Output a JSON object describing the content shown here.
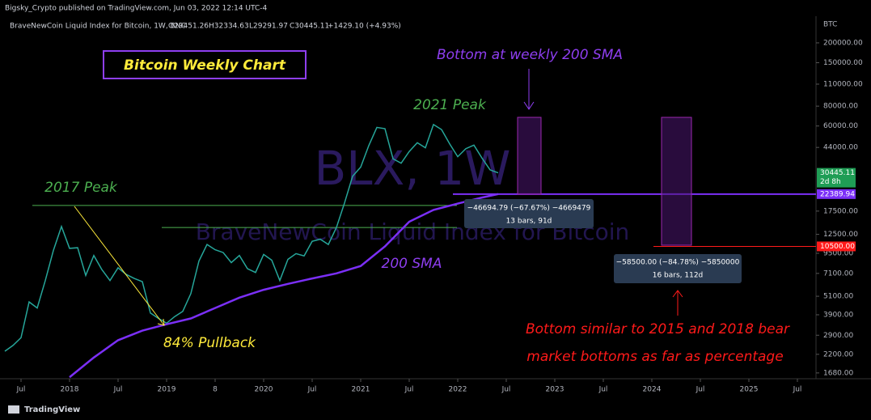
{
  "header": {
    "publisher": "Bigsky_Crypto published on TradingView.com, Jun 03, 2022 12:14 UTC-4",
    "symbol": "BraveNewCoin Liquid Index for Bitcoin, 1W, BNC",
    "ohlc": [
      "O29451.26",
      "H32334.63",
      "L29291.97",
      "C30445.11"
    ],
    "change": "+1429.10 (+4.93%)",
    "currency": "BTC",
    "watermark": "BLX, 1W",
    "watermark_sub": "BraveNewCoin Liquid Index for Bitcoin"
  },
  "footer": "TradingView",
  "chart_data": {
    "type": "line",
    "log_scale": true,
    "ylim": [
      1545,
      232800
    ],
    "yticks": [
      {
        "value": 200000,
        "label": "200000.00"
      },
      {
        "value": 150000,
        "label": "150000.00"
      },
      {
        "value": 110000,
        "label": "110000.00"
      },
      {
        "value": 80000,
        "label": "80000.00"
      },
      {
        "value": 60000,
        "label": "60000.00"
      },
      {
        "value": 44000,
        "label": "44000.00"
      },
      {
        "value": 17500,
        "label": "17500.00"
      },
      {
        "value": 12500,
        "label": "12500.00"
      },
      {
        "value": 9500,
        "label": "9500.00"
      },
      {
        "value": 7100,
        "label": "7100.00"
      },
      {
        "value": 5100,
        "label": "5100.00"
      },
      {
        "value": 3900,
        "label": "3900.00"
      },
      {
        "value": 2900,
        "label": "2900.00"
      },
      {
        "value": 2200,
        "label": "2200.00"
      },
      {
        "value": 1680,
        "label": "1680.00"
      }
    ],
    "xlim": [
      "2017-05",
      "2025-09"
    ],
    "xticks": [
      {
        "value": "2017-07",
        "label": "Jul"
      },
      {
        "value": "2018-01",
        "label": "2018"
      },
      {
        "value": "2018-07",
        "label": "Jul"
      },
      {
        "value": "2019-01",
        "label": "2019"
      },
      {
        "value": "2019-07",
        "label": "8"
      },
      {
        "value": "2020-01",
        "label": "2020"
      },
      {
        "value": "2020-07",
        "label": "Jul"
      },
      {
        "value": "2021-01",
        "label": "2021"
      },
      {
        "value": "2021-07",
        "label": "Jul"
      },
      {
        "value": "2022-01",
        "label": "2022"
      },
      {
        "value": "2022-07",
        "label": "Jul"
      },
      {
        "value": "2023-01",
        "label": "2023"
      },
      {
        "value": "2023-07",
        "label": "Jul"
      },
      {
        "value": "2024-01",
        "label": "2024"
      },
      {
        "value": "2024-07",
        "label": "Jul"
      },
      {
        "value": "2025-01",
        "label": "2025"
      },
      {
        "value": "2025-07",
        "label": "Jul"
      }
    ],
    "series": [
      {
        "color": "#26a69a",
        "x": [
          "2017-05",
          "2017-06",
          "2017-07",
          "2017-08",
          "2017-09",
          "2017-10",
          "2017-11",
          "2017-12",
          "2018-01",
          "2018-02",
          "2018-03",
          "2018-04",
          "2018-05",
          "2018-06",
          "2018-07",
          "2018-08",
          "2018-09",
          "2018-10",
          "2018-11",
          "2018-12",
          "2019-01",
          "2019-02",
          "2019-03",
          "2019-04",
          "2019-05",
          "2019-06",
          "2019-07",
          "2019-08",
          "2019-09",
          "2019-10",
          "2019-11",
          "2019-12",
          "2020-01",
          "2020-02",
          "2020-03",
          "2020-04",
          "2020-05",
          "2020-06",
          "2020-07",
          "2020-08",
          "2020-09",
          "2020-10",
          "2020-11",
          "2020-12",
          "2021-01",
          "2021-02",
          "2021-03",
          "2021-04",
          "2021-05",
          "2021-06",
          "2021-07",
          "2021-08",
          "2021-09",
          "2021-10",
          "2021-11",
          "2021-12",
          "2022-01",
          "2022-02",
          "2022-03",
          "2022-04",
          "2022-05",
          "2022-06"
        ],
        "values": [
          2300,
          2500,
          2800,
          4700,
          4300,
          6400,
          9900,
          14000,
          10200,
          10300,
          6900,
          9200,
          7500,
          6400,
          7700,
          7000,
          6600,
          6300,
          4000,
          3700,
          3450,
          3800,
          4100,
          5300,
          8500,
          10800,
          10000,
          9600,
          8300,
          9200,
          7600,
          7200,
          9350,
          8600,
          6400,
          8700,
          9450,
          9150,
          11300,
          11650,
          10800,
          13800,
          19700,
          29000,
          33100,
          45200,
          58800,
          57700,
          37300,
          35000,
          41500,
          47100,
          43800,
          61300,
          57000,
          46300,
          38500,
          43200,
          45500,
          37700,
          31800,
          30445.11
        ]
      },
      {
        "color": "#7b2ff7",
        "x": [
          "2018-01",
          "2018-04",
          "2018-07",
          "2018-10",
          "2019-01",
          "2019-04",
          "2019-07",
          "2019-10",
          "2020-01",
          "2020-04",
          "2020-07",
          "2020-10",
          "2021-01",
          "2021-04",
          "2021-07",
          "2021-10",
          "2022-01",
          "2022-04",
          "2022-06"
        ],
        "values": [
          1580,
          2100,
          2700,
          3100,
          3400,
          3700,
          4300,
          5000,
          5600,
          6100,
          6600,
          7100,
          7900,
          10500,
          15000,
          17800,
          19500,
          21300,
          22389.94
        ]
      }
    ],
    "levels": [
      {
        "value": 19000,
        "color": "#4caf50"
      },
      {
        "value": 13800,
        "color": "#4caf50"
      },
      {
        "value": 22389.94,
        "color": "#7b2ff7"
      },
      {
        "value": 10500,
        "color": "#ff1a1a"
      }
    ],
    "price_labels": [
      {
        "value": 30445.11,
        "label": "30445.11",
        "color": "#1f9d55"
      },
      {
        "value": 22389.94,
        "label": "22389.94",
        "color": "#7b2ff7"
      },
      {
        "value": 10500,
        "label": "10500.00",
        "color": "#ff1a1a"
      }
    ],
    "countdown": "2d 8h",
    "measurements": [
      [
        "−46694.79 (−67.67%) −4669479",
        "13 bars, 91d"
      ],
      [
        "−58500.00 (−84.78%) −5850000",
        "16 bars, 112d"
      ]
    ],
    "annotations": [
      {
        "text": "Bitcoin Weekly Chart",
        "color": "#ffeb3b"
      },
      {
        "text": "Bottom at weekly 200 SMA",
        "color": "#8e3ef0"
      },
      {
        "text": "2021 Peak",
        "color": "#4caf50"
      },
      {
        "text": "2017 Peak",
        "color": "#4caf50"
      },
      {
        "text": "200 SMA",
        "color": "#8e3ef0"
      },
      {
        "text": "84% Pullback",
        "color": "#ffeb3b"
      },
      {
        "text": "Bottom similar to 2015 and 2018 bear",
        "color": "#ff1a1a"
      },
      {
        "text": "market bottoms as far as percentage",
        "color": "#ff1a1a"
      }
    ]
  }
}
